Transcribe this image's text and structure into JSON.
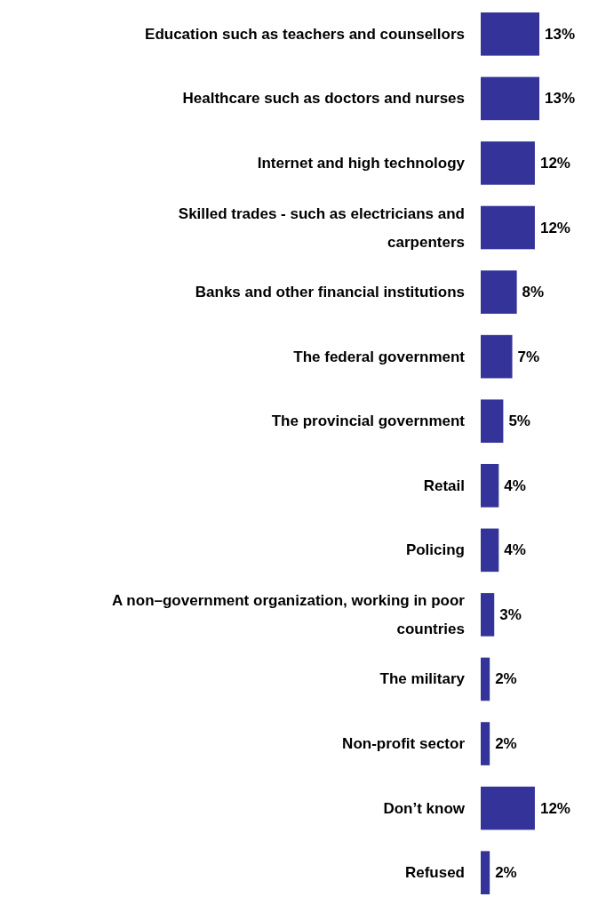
{
  "chart_data": {
    "type": "bar",
    "orientation": "horizontal",
    "data_labels": true,
    "value_labels": [
      "13%",
      "13%",
      "12%",
      "12%",
      "8%",
      "7%",
      "5%",
      "4%",
      "4%",
      "3%",
      "2%",
      "2%",
      "12%",
      "2%"
    ],
    "categories": [
      "Education such as teachers and counsellors",
      "Healthcare such as doctors and nurses",
      "Internet and high technology",
      "Skilled trades - such as electricians and carpenters",
      "Banks and other financial institutions",
      "The federal government",
      "The provincial government",
      "Retail",
      "Policing",
      "A non–government organization, working in poor countries",
      "The military",
      "Non-profit sector",
      "Don’t know",
      "Refused"
    ],
    "values": [
      13,
      13,
      12,
      12,
      8,
      7,
      5,
      4,
      4,
      3,
      2,
      2,
      12,
      2
    ],
    "color": "#333399"
  }
}
